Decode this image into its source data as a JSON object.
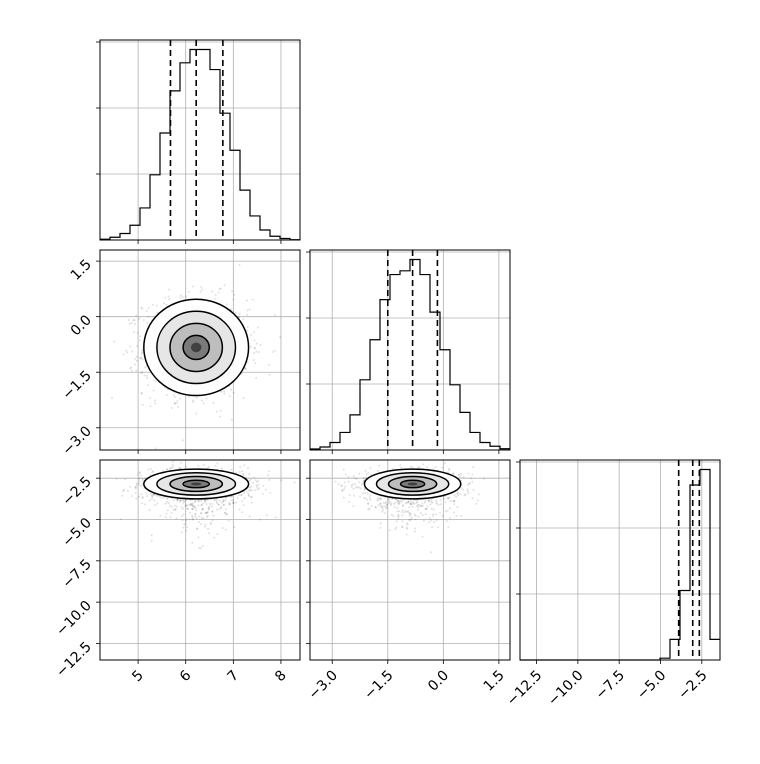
{
  "chart_data": {
    "type": "corner",
    "parameters": [
      {
        "range": [
          4.2,
          8.4
        ],
        "ticks": [
          5,
          6,
          7,
          8
        ],
        "tick_labels": [
          "5",
          "6",
          "7",
          "8"
        ],
        "quantiles": [
          5.68,
          6.22,
          6.78
        ]
      },
      {
        "range": [
          -3.6,
          1.8
        ],
        "ticks": [
          -3.0,
          -1.5,
          0.0,
          1.5
        ],
        "tick_labels": [
          "−3.0",
          "−1.5",
          "0.0",
          "1.5"
        ],
        "quantiles": [
          -1.5,
          -0.83,
          -0.16
        ]
      },
      {
        "range": [
          -13.5,
          -1.4
        ],
        "ticks": [
          -12.5,
          -10.0,
          -7.5,
          -5.0,
          -2.5
        ],
        "tick_labels": [
          "−12.5",
          "−10.0",
          "−7.5",
          "−5.0",
          "−2.5"
        ],
        "quantiles": [
          -3.9,
          -3.05,
          -2.65
        ]
      }
    ],
    "histograms": [
      {
        "param": 0,
        "bins": [
          4.2,
          4.41,
          4.62,
          4.83,
          5.04,
          5.25,
          5.46,
          5.67,
          5.88,
          6.09,
          6.3,
          6.51,
          6.72,
          6.93,
          7.14,
          7.35,
          7.56,
          7.77,
          7.98,
          8.19,
          8.4
        ],
        "counts": [
          0.3,
          1.1,
          2.6,
          5.9,
          12.8,
          26,
          42.7,
          59.5,
          70.7,
          76,
          76,
          68,
          50.6,
          35.8,
          19.9,
          9.6,
          4,
          1.5,
          0.6,
          0.1
        ]
      },
      {
        "param": 1,
        "bins": [
          -3.6,
          -3.33,
          -3.06,
          -2.79,
          -2.52,
          -2.25,
          -1.98,
          -1.71,
          -1.44,
          -1.17,
          -0.9,
          -0.63,
          -0.36,
          -0.09,
          0.18,
          0.45,
          0.72,
          0.99,
          1.26,
          1.53,
          1.8
        ],
        "counts": [
          0.4,
          1.2,
          3,
          7,
          14,
          28,
          44,
          60,
          70,
          71.5,
          76,
          70,
          55,
          40,
          26,
          15,
          7,
          3,
          1.5,
          0.5
        ]
      },
      {
        "param": 2,
        "bins": [
          -13.5,
          -12.895,
          -12.29,
          -11.685,
          -11.08,
          -10.475,
          -9.87,
          -9.265,
          -8.66,
          -8.055,
          -7.45,
          -6.845,
          -6.24,
          -5.635,
          -5.03,
          -4.425,
          -3.82,
          -3.215,
          -2.61,
          -2.005,
          -1.4
        ],
        "counts": [
          0,
          0,
          0,
          0,
          0,
          0,
          0,
          0,
          0,
          0,
          0,
          0,
          0,
          0,
          0.7,
          8,
          27,
          68,
          74,
          8
        ]
      }
    ],
    "axes_visible": {
      "param0_y_tick_labels": false,
      "diagonal_y_tick_labels": false
    },
    "grid": true
  }
}
